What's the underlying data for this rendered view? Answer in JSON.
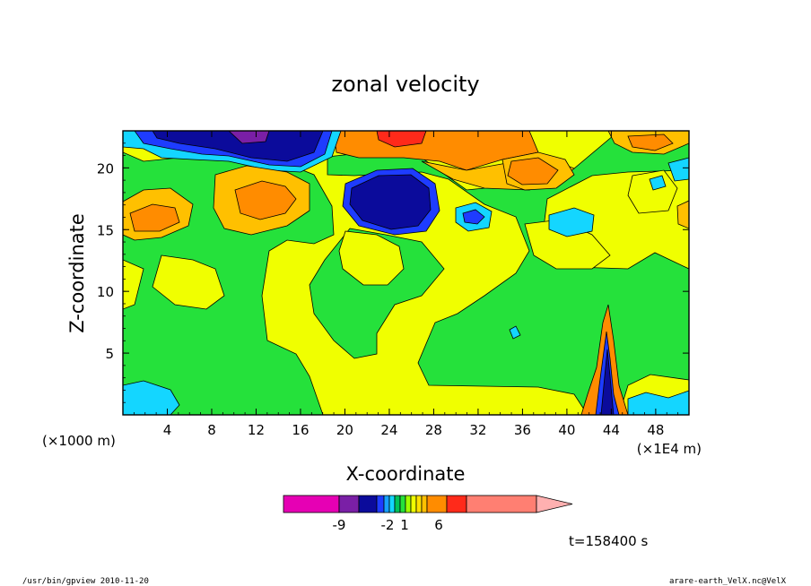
{
  "chart_data": {
    "type": "heatmap",
    "title": "zonal velocity",
    "xlabel": "X-coordinate",
    "ylabel": "Z-coordinate",
    "x_unit_left": "(×1000 m)",
    "x_unit_right": "(×1E4 m)",
    "x_ticks": [
      "4",
      "8",
      "12",
      "16",
      "20",
      "24",
      "28",
      "32",
      "36",
      "40",
      "44",
      "48"
    ],
    "y_ticks": [
      "5",
      "10",
      "15",
      "20"
    ],
    "xlim": [
      0,
      51
    ],
    "ylim": [
      0,
      23
    ],
    "colorbar_labels": [
      "-9",
      "-2",
      "1",
      "6"
    ],
    "colorbar_colors": [
      "#e600b4",
      "#7a1fa6",
      "#0b0b9b",
      "#1e3cff",
      "#16a0ff",
      "#14d6ff",
      "#00c25a",
      "#25e13b",
      "#a0ff00",
      "#f0ff00",
      "#ffe000",
      "#ffc000",
      "#ff8c00",
      "#ff2a1a",
      "#ff7f72",
      "#ffb0b0"
    ],
    "time_label": "t=158400 s"
  },
  "footer": {
    "left": "/usr/bin/gpview  2010-11-20",
    "right": "arare-earth_VelX.nc@VelX"
  }
}
